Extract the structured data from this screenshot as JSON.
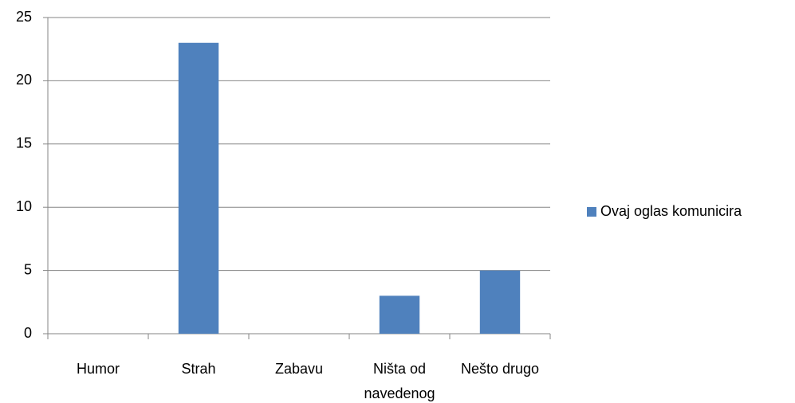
{
  "chart_data": {
    "type": "bar",
    "categories": [
      "Humor",
      "Strah",
      "Zabavu",
      "Ništa od navedenog",
      "Nešto drugo"
    ],
    "series": [
      {
        "name": "Ovaj oglas komunicira",
        "color": "#4f81bd",
        "values": [
          0,
          23,
          0,
          3,
          5
        ]
      }
    ],
    "ylim": [
      0,
      25
    ],
    "yticks": [
      0,
      5,
      10,
      15,
      20,
      25
    ],
    "grid": true,
    "legend": "right"
  }
}
